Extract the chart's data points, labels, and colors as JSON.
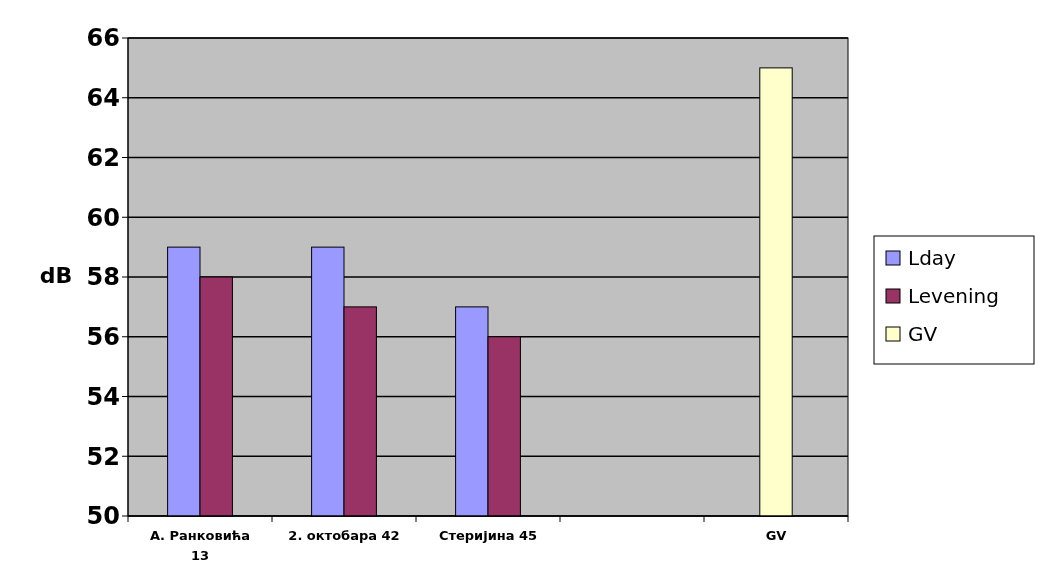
{
  "chart_data": {
    "type": "bar",
    "ylabel": "dB",
    "categories": [
      "А. Ранковића 13",
      "2. октобара 42",
      "Стеријина 45",
      null,
      "GV"
    ],
    "series": [
      {
        "name": "Lday",
        "color": "#9999ff",
        "values": [
          59,
          59,
          57,
          null,
          null
        ]
      },
      {
        "name": "Levening",
        "color": "#993366",
        "values": [
          58,
          57,
          56,
          null,
          null
        ]
      },
      {
        "name": "GV",
        "color": "#ffffcc",
        "values": [
          null,
          null,
          null,
          null,
          65
        ]
      }
    ],
    "ylim": [
      50,
      66
    ],
    "yticks": [
      50,
      52,
      54,
      56,
      58,
      60,
      62,
      64,
      66
    ],
    "grid": "y",
    "legend": "right"
  }
}
